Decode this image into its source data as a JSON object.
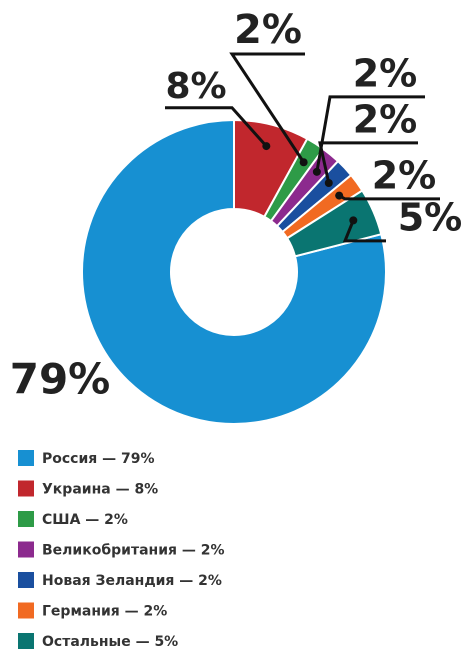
{
  "chart_data": {
    "type": "donut",
    "categories": [
      "Россия — 79%",
      "Украина — 8%",
      "США — 2%",
      "Великобритания — 2%",
      "Новая Зеландия — 2%",
      "Германия — 2%",
      "Остальные — 5%"
    ],
    "values": [
      79,
      8,
      2,
      2,
      2,
      2,
      5
    ],
    "value_labels": [
      "79%",
      "8%",
      "2%",
      "2%",
      "2%",
      "2%",
      "5%"
    ],
    "colors": [
      "#1790d2",
      "#c1272d",
      "#2e9b47",
      "#8c2a8e",
      "#1a4f9f",
      "#f16a22",
      "#0a7571"
    ]
  }
}
